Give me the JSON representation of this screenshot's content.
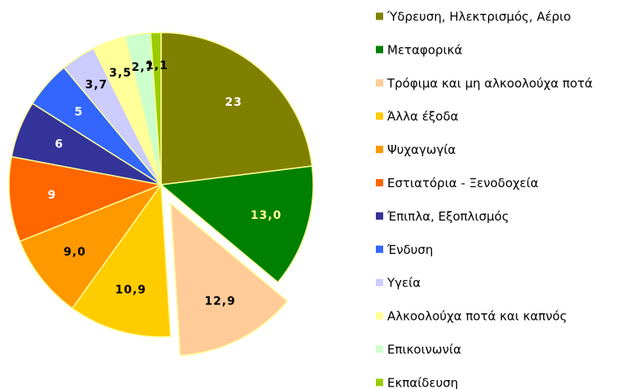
{
  "chart_data": {
    "type": "pie",
    "categories": [
      "Ύδρευση, Ηλεκτρισμός, Αέριο",
      "Μεταφορικά",
      "Τρόφιμα και μη αλκοολούχα ποτά",
      "Άλλα έξοδα",
      "Ψυχαγωγία",
      "Εστιατόρια - Ξενοδοχεία",
      "Έπιπλα, Εξοπλισμός",
      "Ένδυση",
      "Υγεία",
      "Αλκοολούχα ποτά και καπνός",
      "Επικοινωνία",
      "Εκπαίδευση"
    ],
    "values": [
      23,
      13.0,
      12.9,
      10.9,
      9.0,
      9,
      6,
      5,
      3.7,
      3.5,
      2.7,
      1.1
    ],
    "value_labels": [
      "23",
      "13,0",
      "12,9",
      "10,9",
      "9,0",
      "9",
      "6",
      "5",
      "3,7",
      "3,5",
      "2,7",
      "1,1"
    ],
    "colors": [
      "#808000",
      "#008000",
      "#ffcc99",
      "#ffcc00",
      "#ff9900",
      "#ff6600",
      "#333399",
      "#3366ff",
      "#ccccff",
      "#ffff99",
      "#ccffcc",
      "#99cc00"
    ],
    "label_colors": [
      "#ffffff",
      "#ffff99",
      "#000000",
      "#000000",
      "#000000",
      "#ffffff",
      "#ffffff",
      "#ffffff",
      "#000000",
      "#000000",
      "#000000",
      "#000000"
    ],
    "exploded": [
      2
    ]
  }
}
